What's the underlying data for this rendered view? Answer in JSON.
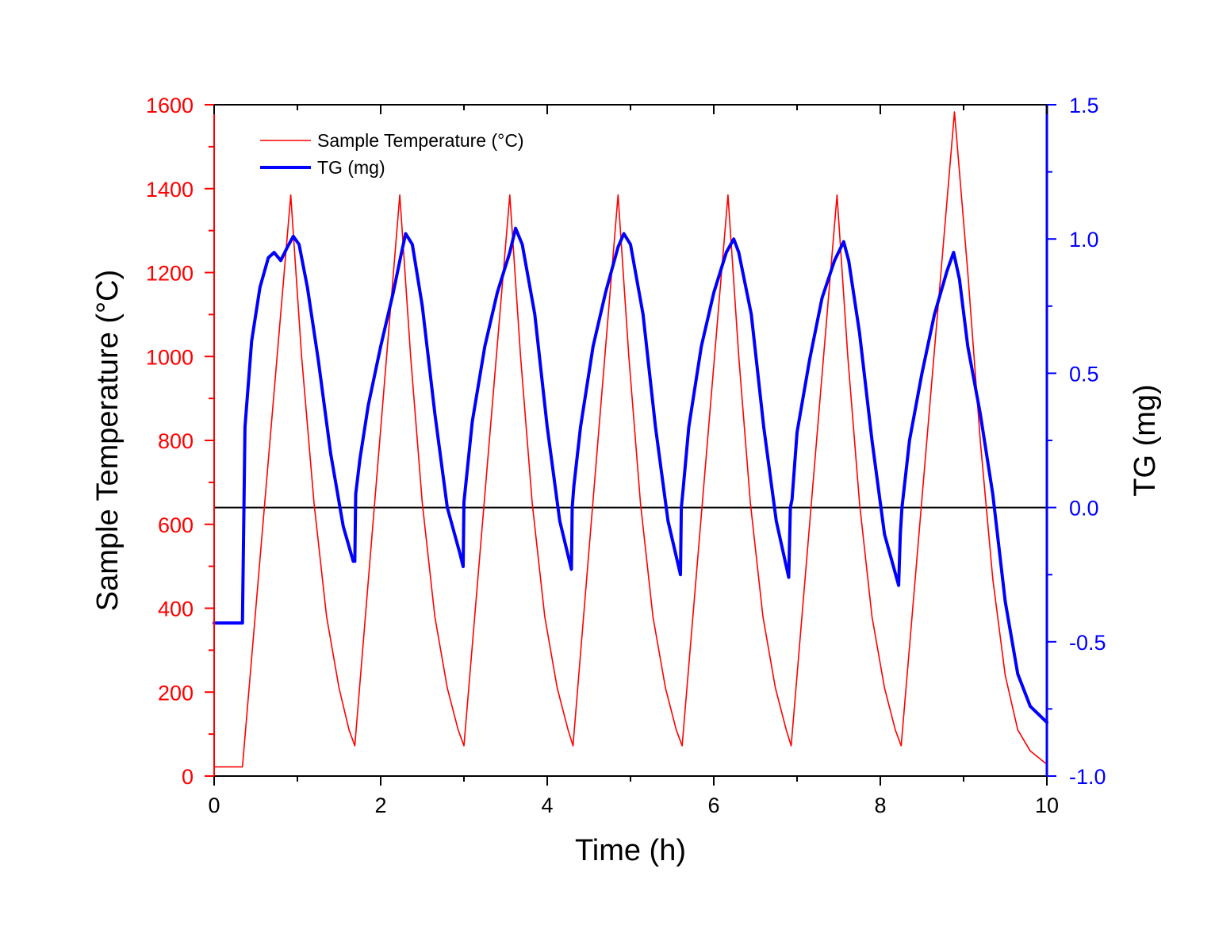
{
  "chart_data": {
    "type": "line",
    "title": "",
    "xlabel": "Time (h)",
    "ylabel_left": "Sample Temperature (°C)",
    "ylabel_right": "TG (mg)",
    "xlim": [
      0,
      10
    ],
    "ylim_left": [
      0,
      1600
    ],
    "ylim_right": [
      -1.0,
      1.5
    ],
    "x_ticks": [
      "0",
      "2",
      "4",
      "6",
      "8",
      "10"
    ],
    "x_tick_values": [
      0,
      2,
      4,
      6,
      8,
      10
    ],
    "y_left_ticks": [
      "0",
      "200",
      "400",
      "600",
      "800",
      "1000",
      "1200",
      "1400",
      "1600"
    ],
    "y_left_tick_values": [
      0,
      200,
      400,
      600,
      800,
      1000,
      1200,
      1400,
      1600
    ],
    "y_right_ticks": [
      "-1.0",
      "-0.5",
      "0.0",
      "0.5",
      "1.0",
      "1.5"
    ],
    "y_right_tick_values": [
      -1.0,
      -0.5,
      0.0,
      0.5,
      1.0,
      1.5
    ],
    "reference_line": {
      "axis": "right",
      "value": 0.0,
      "color": "#000000"
    },
    "legend_position": "top-left",
    "series": [
      {
        "name": "Sample Temperature (°C)",
        "axis": "left",
        "color": "#ff0000",
        "style": "thin",
        "x": [
          0,
          0.34,
          0.92,
          1.05,
          1.2,
          1.35,
          1.5,
          1.62,
          1.69,
          2.23,
          2.36,
          2.5,
          2.65,
          2.8,
          2.93,
          3.0,
          3.55,
          3.68,
          3.82,
          3.97,
          4.12,
          4.25,
          4.31,
          4.85,
          4.98,
          5.12,
          5.27,
          5.42,
          5.55,
          5.62,
          6.17,
          6.3,
          6.44,
          6.59,
          6.74,
          6.87,
          6.93,
          7.48,
          7.61,
          7.75,
          7.9,
          8.05,
          8.18,
          8.25,
          8.89,
          9.05,
          9.2,
          9.35,
          9.5,
          9.65,
          9.8,
          10.0
        ],
        "values": [
          22,
          22,
          1385,
          1000,
          650,
          380,
          210,
          110,
          72,
          1385,
          1000,
          650,
          380,
          210,
          110,
          72,
          1385,
          1000,
          650,
          380,
          210,
          110,
          72,
          1385,
          1000,
          650,
          380,
          210,
          110,
          72,
          1385,
          1000,
          650,
          380,
          210,
          110,
          72,
          1385,
          1000,
          650,
          380,
          210,
          110,
          72,
          1583,
          1200,
          800,
          470,
          240,
          110,
          60,
          28
        ]
      },
      {
        "name": "TG (mg)",
        "axis": "right",
        "color": "#0000ff",
        "style": "thick",
        "x": [
          0,
          0.33,
          0.34,
          0.37,
          0.45,
          0.55,
          0.65,
          0.72,
          0.8,
          0.88,
          0.95,
          1.02,
          1.12,
          1.25,
          1.4,
          1.55,
          1.67,
          1.69,
          1.7,
          1.75,
          1.85,
          2.0,
          2.15,
          2.25,
          2.3,
          2.38,
          2.5,
          2.65,
          2.8,
          2.95,
          2.99,
          3.0,
          3.02,
          3.1,
          3.25,
          3.4,
          3.55,
          3.62,
          3.7,
          3.85,
          4.0,
          4.15,
          4.29,
          4.3,
          4.32,
          4.4,
          4.55,
          4.7,
          4.85,
          4.92,
          5.0,
          5.15,
          5.3,
          5.45,
          5.6,
          5.61,
          5.63,
          5.7,
          5.85,
          6.0,
          6.15,
          6.24,
          6.3,
          6.45,
          6.6,
          6.75,
          6.9,
          6.92,
          6.94,
          7.0,
          7.15,
          7.3,
          7.45,
          7.56,
          7.62,
          7.75,
          7.9,
          8.05,
          8.22,
          8.24,
          8.26,
          8.35,
          8.5,
          8.65,
          8.8,
          8.88,
          8.95,
          9.05,
          9.2,
          9.35,
          9.5,
          9.65,
          9.8,
          10.0
        ],
        "values": [
          -0.43,
          -0.43,
          -0.43,
          0.3,
          0.62,
          0.82,
          0.93,
          0.95,
          0.92,
          0.97,
          1.01,
          0.98,
          0.82,
          0.55,
          0.2,
          -0.07,
          -0.2,
          -0.2,
          0.05,
          0.18,
          0.38,
          0.6,
          0.8,
          0.95,
          1.02,
          0.98,
          0.75,
          0.35,
          0.0,
          -0.17,
          -0.22,
          0.02,
          0.08,
          0.32,
          0.6,
          0.8,
          0.95,
          1.04,
          0.98,
          0.72,
          0.3,
          -0.05,
          -0.23,
          0.0,
          0.08,
          0.3,
          0.6,
          0.8,
          0.97,
          1.02,
          0.98,
          0.72,
          0.3,
          -0.05,
          -0.25,
          0.0,
          0.06,
          0.3,
          0.6,
          0.8,
          0.95,
          1.0,
          0.95,
          0.72,
          0.3,
          -0.05,
          -0.26,
          0.0,
          0.03,
          0.28,
          0.55,
          0.78,
          0.92,
          0.99,
          0.92,
          0.65,
          0.25,
          -0.1,
          -0.29,
          -0.1,
          0.0,
          0.25,
          0.5,
          0.72,
          0.88,
          0.95,
          0.85,
          0.6,
          0.35,
          0.05,
          -0.35,
          -0.62,
          -0.74,
          -0.8
        ]
      }
    ]
  }
}
